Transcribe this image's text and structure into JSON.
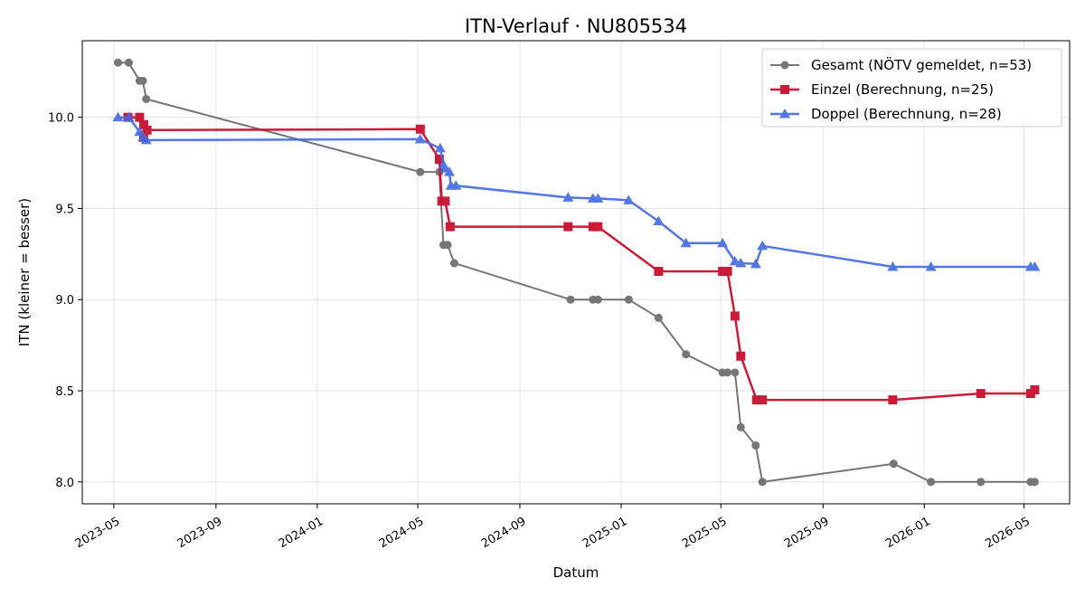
{
  "chart_data": {
    "type": "line",
    "title": "ITN-Verlauf · NU805534",
    "xlabel": "Datum",
    "ylabel": "ITN  (kleiner = besser)",
    "x_type": "date",
    "xlim": [
      "2023-03-24",
      "2026-06-25"
    ],
    "ylim": [
      7.88,
      10.42
    ],
    "x_ticks": [
      {
        "date": "2023-05-01",
        "label": "2023-05"
      },
      {
        "date": "2023-09-01",
        "label": "2023-09"
      },
      {
        "date": "2024-01-01",
        "label": "2024-01"
      },
      {
        "date": "2024-05-01",
        "label": "2024-05"
      },
      {
        "date": "2024-09-01",
        "label": "2024-09"
      },
      {
        "date": "2025-01-01",
        "label": "2025-01"
      },
      {
        "date": "2025-05-01",
        "label": "2025-05"
      },
      {
        "date": "2025-09-01",
        "label": "2025-09"
      },
      {
        "date": "2026-01-01",
        "label": "2026-01"
      },
      {
        "date": "2026-05-01",
        "label": "2026-05"
      }
    ],
    "y_ticks": [
      {
        "value": 8.0,
        "label": "8.0"
      },
      {
        "value": 8.5,
        "label": "8.5"
      },
      {
        "value": 9.0,
        "label": "9.0"
      },
      {
        "value": 9.5,
        "label": "9.5"
      },
      {
        "value": 10.0,
        "label": "10.0"
      }
    ],
    "grid": true,
    "legend_position": "top-right",
    "series": [
      {
        "name": "Gesamt (NÖTV gemeldet, n=53)",
        "color": "#555555",
        "marker": "circle",
        "points": [
          {
            "date": "2023-05-06",
            "y": 10.3
          },
          {
            "date": "2023-05-19",
            "y": 10.3
          },
          {
            "date": "2023-06-01",
            "y": 10.2
          },
          {
            "date": "2023-06-05",
            "y": 10.2
          },
          {
            "date": "2023-06-09",
            "y": 10.1
          },
          {
            "date": "2024-05-04",
            "y": 9.7
          },
          {
            "date": "2024-05-27",
            "y": 9.7
          },
          {
            "date": "2024-06-01",
            "y": 9.3
          },
          {
            "date": "2024-06-06",
            "y": 9.3
          },
          {
            "date": "2024-06-14",
            "y": 9.2
          },
          {
            "date": "2024-11-01",
            "y": 9.0
          },
          {
            "date": "2024-11-28",
            "y": 9.0
          },
          {
            "date": "2024-12-04",
            "y": 9.0
          },
          {
            "date": "2025-01-10",
            "y": 9.0
          },
          {
            "date": "2025-02-15",
            "y": 8.9
          },
          {
            "date": "2025-03-20",
            "y": 8.7
          },
          {
            "date": "2025-05-03",
            "y": 8.6
          },
          {
            "date": "2025-05-09",
            "y": 8.6
          },
          {
            "date": "2025-05-18",
            "y": 8.6
          },
          {
            "date": "2025-05-25",
            "y": 8.3
          },
          {
            "date": "2025-06-12",
            "y": 8.2
          },
          {
            "date": "2025-06-20",
            "y": 8.0
          },
          {
            "date": "2025-11-25",
            "y": 8.1
          },
          {
            "date": "2026-01-09",
            "y": 8.0
          },
          {
            "date": "2026-03-10",
            "y": 8.0
          },
          {
            "date": "2026-05-09",
            "y": 8.0
          },
          {
            "date": "2026-05-14",
            "y": 8.0
          }
        ]
      },
      {
        "name": "Einzel (Berechnung, n=25)",
        "color": "#c8102e",
        "marker": "square",
        "points": [
          {
            "date": "2023-05-18",
            "y": 10.0
          },
          {
            "date": "2023-06-01",
            "y": 10.0
          },
          {
            "date": "2023-06-06",
            "y": 9.96
          },
          {
            "date": "2023-06-06",
            "y": 9.89
          },
          {
            "date": "2023-06-10",
            "y": 9.93
          },
          {
            "date": "2024-05-04",
            "y": 9.935
          },
          {
            "date": "2024-05-27",
            "y": 9.77
          },
          {
            "date": "2024-05-30",
            "y": 9.54
          },
          {
            "date": "2024-06-03",
            "y": 9.54
          },
          {
            "date": "2024-06-09",
            "y": 9.4
          },
          {
            "date": "2024-10-29",
            "y": 9.4
          },
          {
            "date": "2024-11-28",
            "y": 9.4
          },
          {
            "date": "2024-12-04",
            "y": 9.4
          },
          {
            "date": "2025-02-15",
            "y": 9.155
          },
          {
            "date": "2025-05-03",
            "y": 9.155
          },
          {
            "date": "2025-05-09",
            "y": 9.155
          },
          {
            "date": "2025-05-18",
            "y": 8.91
          },
          {
            "date": "2025-05-25",
            "y": 8.69
          },
          {
            "date": "2025-06-13",
            "y": 8.45
          },
          {
            "date": "2025-06-20",
            "y": 8.45
          },
          {
            "date": "2025-11-24",
            "y": 8.45
          },
          {
            "date": "2026-03-10",
            "y": 8.485
          },
          {
            "date": "2026-05-09",
            "y": 8.485
          },
          {
            "date": "2026-05-14",
            "y": 8.505
          }
        ]
      },
      {
        "name": "Doppel (Berechnung, n=28)",
        "color": "#4169e1",
        "marker": "triangle",
        "points": [
          {
            "date": "2023-05-06",
            "y": 10.0
          },
          {
            "date": "2023-05-19",
            "y": 10.0
          },
          {
            "date": "2023-06-01",
            "y": 9.92
          },
          {
            "date": "2023-06-05",
            "y": 9.89
          },
          {
            "date": "2023-06-09",
            "y": 9.875
          },
          {
            "date": "2024-05-04",
            "y": 9.88
          },
          {
            "date": "2024-05-28",
            "y": 9.83
          },
          {
            "date": "2024-06-01",
            "y": 9.74
          },
          {
            "date": "2024-06-03",
            "y": 9.72
          },
          {
            "date": "2024-06-08",
            "y": 9.7
          },
          {
            "date": "2024-06-10",
            "y": 9.625
          },
          {
            "date": "2024-06-16",
            "y": 9.625
          },
          {
            "date": "2024-10-29",
            "y": 9.56
          },
          {
            "date": "2024-11-28",
            "y": 9.555
          },
          {
            "date": "2024-12-04",
            "y": 9.555
          },
          {
            "date": "2025-01-10",
            "y": 9.545
          },
          {
            "date": "2025-02-15",
            "y": 9.43
          },
          {
            "date": "2025-03-20",
            "y": 9.31
          },
          {
            "date": "2025-05-03",
            "y": 9.31
          },
          {
            "date": "2025-05-18",
            "y": 9.21
          },
          {
            "date": "2025-05-25",
            "y": 9.2
          },
          {
            "date": "2025-06-12",
            "y": 9.195
          },
          {
            "date": "2025-06-20",
            "y": 9.295
          },
          {
            "date": "2025-11-24",
            "y": 9.18
          },
          {
            "date": "2026-01-09",
            "y": 9.18
          },
          {
            "date": "2026-05-09",
            "y": 9.18
          },
          {
            "date": "2026-05-14",
            "y": 9.18
          }
        ]
      }
    ]
  }
}
